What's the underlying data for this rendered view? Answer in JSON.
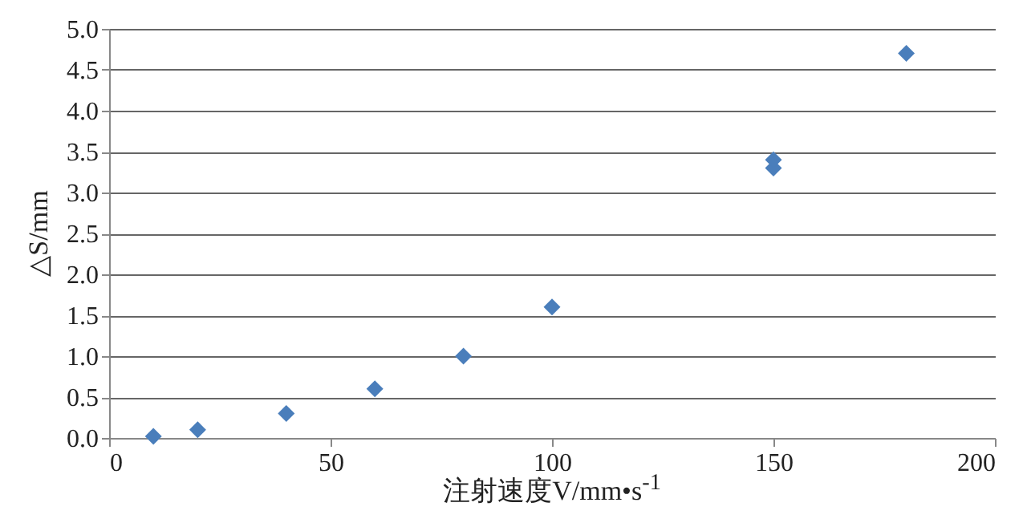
{
  "chart_data": {
    "type": "scatter",
    "xlabel": "注射速度V/mm•s$^{-1}$",
    "ylabel": "△S/mm",
    "x": [
      10,
      20,
      40,
      60,
      80,
      100,
      150,
      150,
      180
    ],
    "series": [
      {
        "color": "#4a7ebb",
        "values": [
          0.02,
          0.1,
          0.3,
          0.6,
          1.0,
          1.6,
          3.3,
          3.4,
          4.7
        ]
      }
    ],
    "xlim": [
      0,
      200
    ],
    "xticks": [
      0,
      50,
      100,
      150,
      200
    ],
    "ylim": [
      0,
      5
    ],
    "yticks": [
      {
        "value": 0,
        "label": "0.0"
      },
      0.5,
      {
        "value": 1,
        "label": "1.0"
      },
      1.5,
      {
        "value": 2,
        "label": "2.0"
      },
      2.5,
      {
        "value": 3,
        "label": "3.0"
      },
      3.5,
      {
        "value": 4,
        "label": "4.0"
      },
      4.5,
      {
        "value": 5,
        "label": "5.0"
      }
    ],
    "grid": "y",
    "marker": "diamond"
  }
}
